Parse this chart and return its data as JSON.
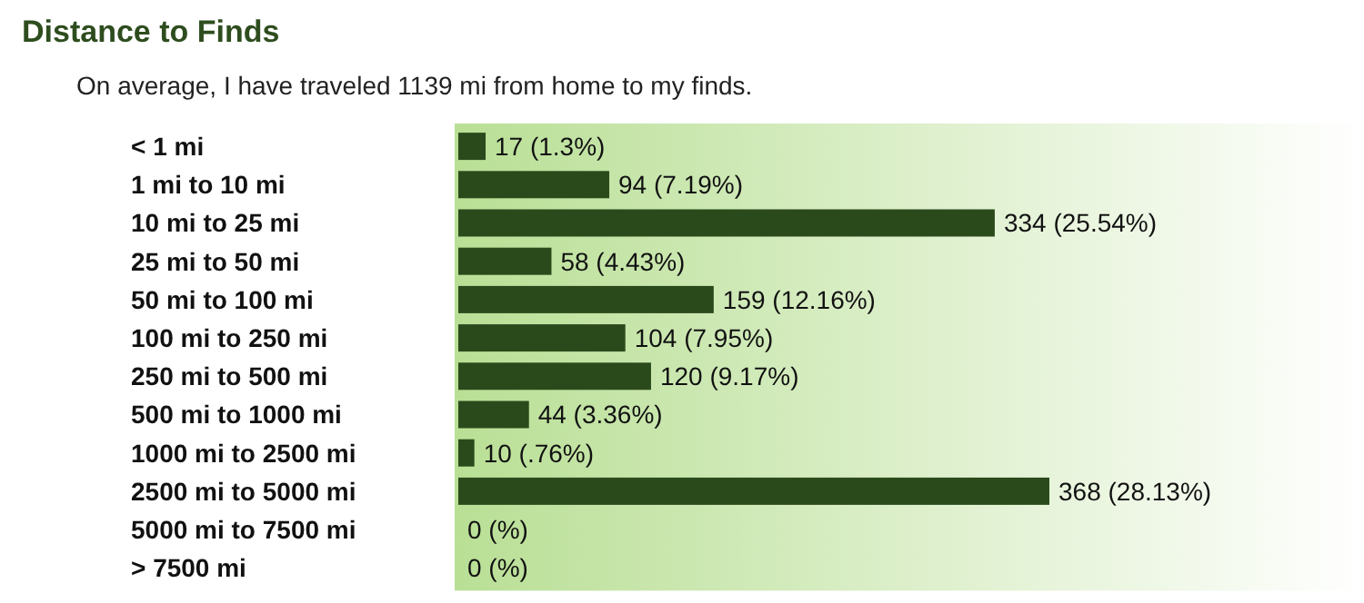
{
  "chart_data": {
    "type": "bar",
    "orientation": "horizontal",
    "title": "Distance to Finds",
    "subtitle": "On average, I have traveled 1139 mi from home to my finds.",
    "categories": [
      "< 1 mi",
      "1 mi to 10 mi",
      "10 mi to 25 mi",
      "25 mi to 50 mi",
      "50 mi to 100 mi",
      "100 mi to 250 mi",
      "250 mi to 500 mi",
      "500 mi to 1000 mi",
      "1000 mi to 2500 mi",
      "2500 mi to 5000 mi",
      "5000 mi to 7500 mi",
      "> 7500 mi"
    ],
    "values": [
      17,
      94,
      334,
      58,
      159,
      104,
      120,
      44,
      10,
      368,
      0,
      0
    ],
    "value_labels": [
      "17 (1.3%)",
      "94 (7.19%)",
      "334 (25.54%)",
      "58 (4.43%)",
      "159 (12.16%)",
      "104 (7.95%)",
      "120 (9.17%)",
      "44 (3.36%)",
      "10 (.76%)",
      "368 (28.13%)",
      "0 (%)",
      "0 (%)"
    ],
    "color": "#2b4a1c"
  }
}
